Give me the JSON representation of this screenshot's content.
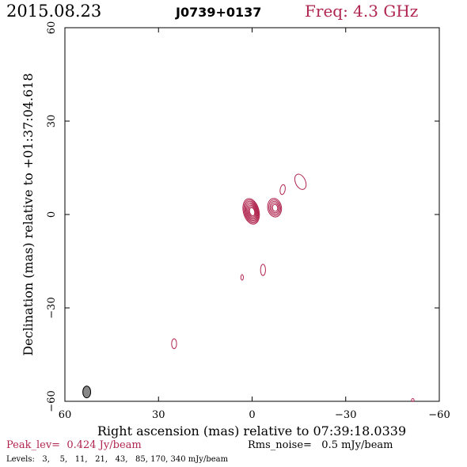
{
  "header": {
    "date": "2015.08.23",
    "source": "J0739+0137",
    "freq": "Freq: 4.3 GHz"
  },
  "footer": {
    "peak": "Peak_lev=  0.424 Jy/beam",
    "rms": "Rms_noise=   0.5 mJy/beam",
    "levels": "Levels:   3,    5,   11,   21,   43,   85, 170, 340 mJy/beam"
  },
  "colors": {
    "contour": "#b0254f",
    "accent_text": "#b0254f",
    "beam_fill": "#888888"
  },
  "chart_data": {
    "type": "contour",
    "xlabel": "Right ascension (mas) relative to 07:39:18.0339",
    "ylabel": "Declination (mas) relative to +01:37:04.618",
    "xlim": [
      60,
      -60
    ],
    "ylim": [
      -60,
      60
    ],
    "xticks": [
      60,
      30,
      0,
      -30,
      -60
    ],
    "yticks": [
      60,
      30,
      0,
      -30,
      -60
    ],
    "xtick_labels": [
      "60",
      "30",
      "0",
      "−30",
      "−60"
    ],
    "ytick_labels": [
      "60",
      "30",
      "0",
      "−30",
      "−60"
    ],
    "levels_mJy": [
      3,
      5,
      11,
      21,
      43,
      85,
      170,
      340
    ],
    "peak_Jy_per_beam": 0.424,
    "rms_mJy_per_beam": 0.5,
    "components": [
      {
        "name": "core",
        "x": 0.3,
        "y": 1.0,
        "rx": 2.5,
        "ry": 4.2,
        "rot": -15,
        "nlevels": 8
      },
      {
        "name": "jet-knot-1",
        "x": -7.2,
        "y": 2.2,
        "rx": 2.2,
        "ry": 3.0,
        "rot": -10,
        "nlevels": 5
      },
      {
        "name": "jet-knot-2",
        "x": -9.8,
        "y": 8.0,
        "rx": 0.8,
        "ry": 1.6,
        "rot": 10,
        "nlevels": 1
      },
      {
        "name": "jet-knot-3",
        "x": -15.5,
        "y": 10.5,
        "rx": 1.6,
        "ry": 2.6,
        "rot": -25,
        "nlevels": 1
      },
      {
        "name": "blob-south-1",
        "x": -3.5,
        "y": -17.8,
        "rx": 0.8,
        "ry": 1.8,
        "rot": 0,
        "nlevels": 1
      },
      {
        "name": "blob-south-2",
        "x": 3.2,
        "y": -20.2,
        "rx": 0.4,
        "ry": 0.9,
        "rot": 0,
        "nlevels": 1
      },
      {
        "name": "blob-southwest",
        "x": 25.0,
        "y": -41.5,
        "rx": 0.8,
        "ry": 1.6,
        "rot": 0,
        "nlevels": 1
      },
      {
        "name": "blob-edge",
        "x": -51.5,
        "y": -59.6,
        "rx": 0.4,
        "ry": 0.5,
        "rot": 0,
        "nlevels": 1
      }
    ],
    "beam": {
      "x": 53.0,
      "y": -57.0,
      "rx": 0.9,
      "ry": 1.9,
      "rot": 0
    }
  }
}
